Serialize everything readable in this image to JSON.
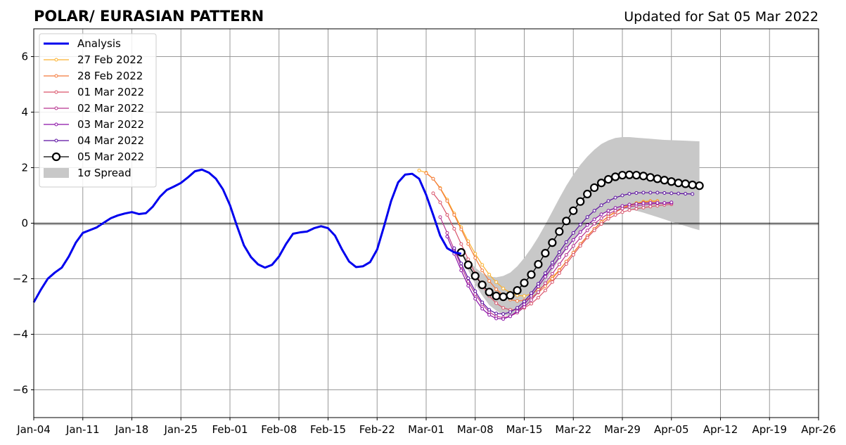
{
  "chart_data": {
    "type": "line",
    "title": "POLAR/ EURASIAN  PATTERN",
    "subtitle": "Updated for Sat 05 Mar 2022",
    "xlabel": "",
    "ylabel": "",
    "xlim": [
      0,
      112
    ],
    "ylim": [
      -7,
      7
    ],
    "x_unit": "days since Jan-04 2022",
    "x_ticks": [
      {
        "day": 0,
        "label": "Jan-04"
      },
      {
        "day": 7,
        "label": "Jan-11"
      },
      {
        "day": 14,
        "label": "Jan-18"
      },
      {
        "day": 21,
        "label": "Jan-25"
      },
      {
        "day": 28,
        "label": "Feb-01"
      },
      {
        "day": 35,
        "label": "Feb-08"
      },
      {
        "day": 42,
        "label": "Feb-15"
      },
      {
        "day": 49,
        "label": "Feb-22"
      },
      {
        "day": 56,
        "label": "Mar-01"
      },
      {
        "day": 63,
        "label": "Mar-08"
      },
      {
        "day": 70,
        "label": "Mar-15"
      },
      {
        "day": 77,
        "label": "Mar-22"
      },
      {
        "day": 84,
        "label": "Mar-29"
      },
      {
        "day": 91,
        "label": "Apr-05"
      },
      {
        "day": 98,
        "label": "Apr-12"
      },
      {
        "day": 105,
        "label": "Apr-19"
      },
      {
        "day": 112,
        "label": "Apr-26"
      }
    ],
    "y_ticks": [
      {
        "value": -6,
        "label": "−6"
      },
      {
        "value": -4,
        "label": "−4"
      },
      {
        "value": -2,
        "label": "−2"
      },
      {
        "value": 0,
        "label": "0"
      },
      {
        "value": 2,
        "label": "2"
      },
      {
        "value": 4,
        "label": "4"
      },
      {
        "value": 6,
        "label": "6"
      }
    ],
    "grid": true,
    "legend_position": "top-left",
    "zero_line": true,
    "analysis": {
      "name": "Analysis",
      "color": "#0000ee",
      "x": [
        0,
        1,
        2,
        3,
        4,
        5,
        6,
        7,
        8,
        9,
        10,
        11,
        12,
        13,
        14,
        15,
        16,
        17,
        18,
        19,
        20,
        21,
        22,
        23,
        24,
        25,
        26,
        27,
        28,
        29,
        30,
        31,
        32,
        33,
        34,
        35,
        36,
        37,
        38,
        39,
        40,
        41,
        42,
        43,
        44,
        45,
        46,
        47,
        48,
        49,
        50,
        51,
        52,
        53,
        54,
        55,
        56,
        57,
        58,
        59,
        60,
        61
      ],
      "y": [
        -2.85,
        -2.4,
        -2.0,
        -1.78,
        -1.6,
        -1.2,
        -0.7,
        -0.35,
        -0.25,
        -0.15,
        0.02,
        0.18,
        0.28,
        0.35,
        0.4,
        0.33,
        0.36,
        0.6,
        0.95,
        1.2,
        1.32,
        1.45,
        1.65,
        1.87,
        1.93,
        1.82,
        1.6,
        1.22,
        0.65,
        -0.1,
        -0.8,
        -1.22,
        -1.48,
        -1.6,
        -1.5,
        -1.2,
        -0.75,
        -0.38,
        -0.33,
        -0.3,
        -0.18,
        -0.11,
        -0.18,
        -0.45,
        -0.95,
        -1.38,
        -1.58,
        -1.55,
        -1.4,
        -0.95,
        -0.1,
        0.8,
        1.47,
        1.75,
        1.78,
        1.6,
        1.02,
        0.3,
        -0.45,
        -0.9,
        -1.05,
        -1.1
      ]
    },
    "series": [
      {
        "name": "27 Feb 2022",
        "color": "#fbb12e",
        "x_start": 55,
        "y": [
          1.9,
          1.82,
          1.6,
          1.27,
          0.85,
          0.35,
          -0.15,
          -0.65,
          -1.1,
          -1.5,
          -1.85,
          -2.12,
          -2.35,
          -2.5,
          -2.6,
          -2.62,
          -2.55,
          -2.4,
          -2.2,
          -1.95,
          -1.68,
          -1.38,
          -1.07,
          -0.76,
          -0.47,
          -0.2,
          0.05,
          0.25,
          0.42,
          0.56,
          0.66,
          0.73,
          0.78,
          0.8,
          0.8
        ]
      },
      {
        "name": "28 Feb 2022",
        "color": "#f3793a",
        "x_start": 56,
        "y": [
          1.8,
          1.6,
          1.25,
          0.8,
          0.3,
          -0.22,
          -0.75,
          -1.25,
          -1.7,
          -2.08,
          -2.38,
          -2.6,
          -2.75,
          -2.8,
          -2.78,
          -2.68,
          -2.5,
          -2.27,
          -2.0,
          -1.7,
          -1.38,
          -1.06,
          -0.75,
          -0.46,
          -0.2,
          0.04,
          0.24,
          0.4,
          0.53,
          0.63,
          0.7,
          0.75,
          0.78,
          0.78
        ]
      },
      {
        "name": "01 Mar 2022",
        "color": "#d9536a",
        "x_start": 57,
        "y": [
          1.08,
          0.75,
          0.3,
          -0.2,
          -0.75,
          -1.3,
          -1.8,
          -2.25,
          -2.62,
          -2.88,
          -3.05,
          -3.12,
          -3.12,
          -3.05,
          -2.9,
          -2.68,
          -2.42,
          -2.12,
          -1.8,
          -1.47,
          -1.14,
          -0.82,
          -0.52,
          -0.26,
          -0.03,
          0.16,
          0.3,
          0.4,
          0.47,
          0.52,
          0.56,
          0.6,
          0.63,
          0.66,
          0.68
        ]
      },
      {
        "name": "02 Mar 2022",
        "color": "#b7358f",
        "x_start": 58,
        "y": [
          0.22,
          -0.35,
          -0.95,
          -1.55,
          -2.1,
          -2.55,
          -2.92,
          -3.2,
          -3.35,
          -3.4,
          -3.35,
          -3.22,
          -3.02,
          -2.77,
          -2.48,
          -2.16,
          -1.82,
          -1.48,
          -1.14,
          -0.82,
          -0.53,
          -0.26,
          -0.02,
          0.18,
          0.34,
          0.45,
          0.53,
          0.59,
          0.63,
          0.66,
          0.69,
          0.71,
          0.72,
          0.72
        ]
      },
      {
        "name": "03 Mar 2022",
        "color": "#8b11a6",
        "x_start": 59,
        "y": [
          -0.48,
          -1.1,
          -1.7,
          -2.25,
          -2.72,
          -3.08,
          -3.3,
          -3.43,
          -3.45,
          -3.35,
          -3.17,
          -2.92,
          -2.62,
          -2.28,
          -1.93,
          -1.58,
          -1.23,
          -0.9,
          -0.6,
          -0.32,
          -0.07,
          0.14,
          0.32,
          0.45,
          0.55,
          0.62,
          0.67,
          0.7,
          0.72,
          0.73,
          0.73,
          0.73,
          0.75
        ]
      },
      {
        "name": "04 Mar 2022",
        "color": "#5b0fa0",
        "x_start": 60,
        "y": [
          -0.9,
          -1.45,
          -1.98,
          -2.45,
          -2.85,
          -3.12,
          -3.25,
          -3.27,
          -3.2,
          -3.05,
          -2.82,
          -2.52,
          -2.18,
          -1.8,
          -1.42,
          -1.04,
          -0.68,
          -0.35,
          -0.05,
          0.22,
          0.45,
          0.65,
          0.8,
          0.92,
          1.0,
          1.06,
          1.09,
          1.1,
          1.1,
          1.1,
          1.09,
          1.08,
          1.07,
          1.06,
          1.05
        ]
      },
      {
        "name": "05 Mar 2022",
        "color": "#000000",
        "x_start": 61,
        "y": [
          -1.05,
          -1.5,
          -1.9,
          -2.22,
          -2.48,
          -2.62,
          -2.65,
          -2.6,
          -2.42,
          -2.15,
          -1.85,
          -1.48,
          -1.08,
          -0.7,
          -0.3,
          0.08,
          0.45,
          0.78,
          1.05,
          1.28,
          1.45,
          1.58,
          1.67,
          1.73,
          1.74,
          1.73,
          1.7,
          1.65,
          1.6,
          1.55,
          1.5,
          1.45,
          1.42,
          1.38,
          1.35
        ]
      }
    ],
    "spread": {
      "name": "1σ Spread",
      "color": "#c8c8c8",
      "x_start": 61,
      "upper": [
        -1.05,
        -1.3,
        -1.6,
        -1.8,
        -1.92,
        -1.95,
        -1.9,
        -1.78,
        -1.55,
        -1.25,
        -0.9,
        -0.5,
        -0.05,
        0.42,
        0.9,
        1.35,
        1.75,
        2.1,
        2.4,
        2.65,
        2.85,
        2.98,
        3.07,
        3.1,
        3.1,
        3.08,
        3.06,
        3.04,
        3.02,
        3.0,
        2.99,
        2.98,
        2.97,
        2.96,
        2.95
      ],
      "lower": [
        -1.05,
        -1.7,
        -2.2,
        -2.6,
        -2.95,
        -3.15,
        -3.3,
        -3.35,
        -3.25,
        -3.05,
        -2.8,
        -2.45,
        -2.1,
        -1.7,
        -1.3,
        -0.95,
        -0.6,
        -0.3,
        -0.05,
        0.15,
        0.3,
        0.42,
        0.5,
        0.52,
        0.5,
        0.45,
        0.38,
        0.3,
        0.22,
        0.14,
        0.05,
        -0.02,
        -0.1,
        -0.18,
        -0.25
      ]
    }
  }
}
